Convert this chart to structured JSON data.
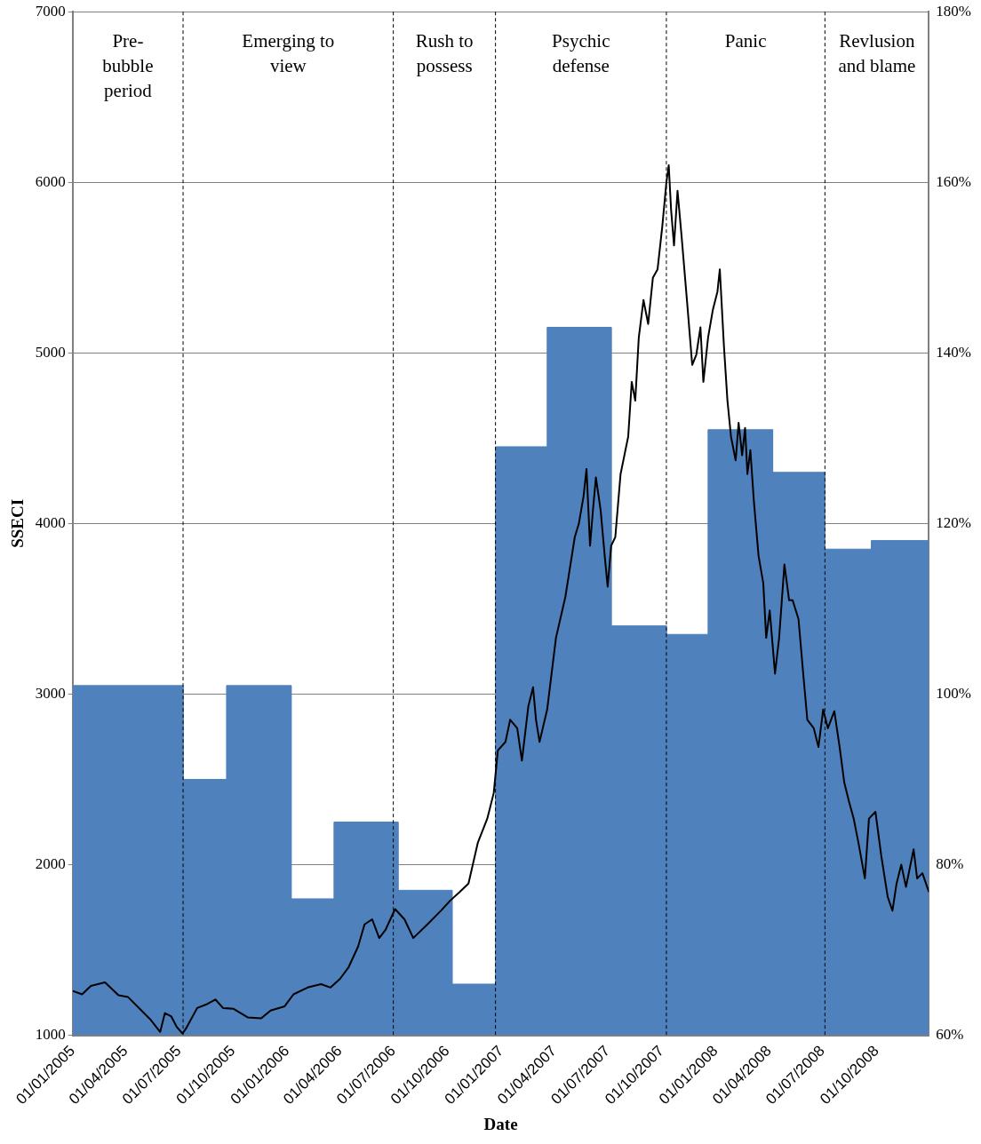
{
  "chart_data": {
    "type": "line",
    "xlabel": "Date",
    "ylabel": "SSECI",
    "xlim": [
      "2005-01-01",
      "2008-12-29"
    ],
    "xticks": [
      {
        "value": "2005-01-01",
        "label": "01/01/2005"
      },
      {
        "value": "2005-04-01",
        "label": "01/04/2005"
      },
      {
        "value": "2005-07-01",
        "label": "01/07/2005"
      },
      {
        "value": "2005-10-01",
        "label": "01/10/2005"
      },
      {
        "value": "2006-01-01",
        "label": "01/01/2006"
      },
      {
        "value": "2006-04-01",
        "label": "01/04/2006"
      },
      {
        "value": "2006-07-01",
        "label": "01/07/2006"
      },
      {
        "value": "2006-10-01",
        "label": "01/10/2006"
      },
      {
        "value": "2007-01-01",
        "label": "01/01/2007"
      },
      {
        "value": "2007-04-01",
        "label": "01/04/2007"
      },
      {
        "value": "2007-07-01",
        "label": "01/07/2007"
      },
      {
        "value": "2007-10-01",
        "label": "01/10/2007"
      },
      {
        "value": "2008-01-01",
        "label": "01/01/2008"
      },
      {
        "value": "2008-04-01",
        "label": "01/04/2008"
      },
      {
        "value": "2008-07-01",
        "label": "01/07/2008"
      },
      {
        "value": "2008-10-01",
        "label": "01/10/2008"
      }
    ],
    "ylim": [
      1000,
      7000
    ],
    "yticks": [
      1000,
      2000,
      3000,
      4000,
      5000,
      6000,
      7000
    ],
    "y2lim": [
      60,
      180
    ],
    "y2ticks": [
      {
        "value": 60,
        "label": "60%"
      },
      {
        "value": 80,
        "label": "80%"
      },
      {
        "value": 100,
        "label": "100%"
      },
      {
        "value": 120,
        "label": "120%"
      },
      {
        "value": 140,
        "label": "140%"
      },
      {
        "value": 160,
        "label": "160%"
      },
      {
        "value": 180,
        "label": "180%"
      }
    ],
    "grid": "y",
    "legend": false,
    "marker": "none",
    "ref_lines": [
      {
        "axis": "x",
        "value": "2005-07-08",
        "line_style": "dashed",
        "color": "#000000"
      },
      {
        "axis": "x",
        "value": "2006-07-01",
        "line_style": "dashed",
        "color": "#000000"
      },
      {
        "axis": "x",
        "value": "2006-12-22",
        "line_style": "dashed",
        "color": "#000000"
      },
      {
        "axis": "x",
        "value": "2007-10-09",
        "line_style": "dashed",
        "color": "#000000"
      },
      {
        "axis": "x",
        "value": "2008-07-05",
        "line_style": "dashed",
        "color": "#000000"
      }
    ],
    "annotations": [
      "Pre-\nbubble\nperiod",
      "Emerging to\nview",
      "Rush to\npossess",
      "Psychic\ndefense",
      "Panic",
      "Revlusion\nand blame"
    ],
    "series": [
      {
        "color": "#000000",
        "x": [
          "2005-01-01",
          "2005-01-17",
          "2005-02-01",
          "2005-02-25",
          "2005-03-20",
          "2005-04-05",
          "2005-04-21",
          "2005-05-14",
          "2005-05-30",
          "2005-06-07",
          "2005-06-18",
          "2005-06-27",
          "2005-07-07",
          "2005-07-13",
          "2005-08-01",
          "2005-08-16",
          "2005-09-01",
          "2005-09-14",
          "2005-10-02",
          "2005-10-26",
          "2005-11-18",
          "2005-12-04",
          "2005-12-28",
          "2006-01-12",
          "2006-02-05",
          "2006-02-28",
          "2006-03-16",
          "2006-04-01",
          "2006-04-16",
          "2006-05-02",
          "2006-05-13",
          "2006-05-26",
          "2006-06-07",
          "2006-06-18",
          "2006-07-04",
          "2006-07-20",
          "2006-08-04",
          "2006-08-28",
          "2006-09-20",
          "2006-10-06",
          "2006-10-22",
          "2006-11-06",
          "2006-11-22",
          "2006-12-08",
          "2006-12-19",
          "2006-12-26",
          "2007-01-08",
          "2007-01-16",
          "2007-01-28",
          "2007-02-05",
          "2007-02-16",
          "2007-02-24",
          "2007-03-01",
          "2007-03-07",
          "2007-03-20",
          "2007-04-04",
          "2007-04-20",
          "2007-05-06",
          "2007-05-13",
          "2007-05-21",
          "2007-05-26",
          "2007-06-01",
          "2007-06-06",
          "2007-06-11",
          "2007-06-19",
          "2007-06-26",
          "2007-07-01",
          "2007-07-07",
          "2007-07-14",
          "2007-07-23",
          "2007-08-05",
          "2007-08-11",
          "2007-08-17",
          "2007-08-23",
          "2007-08-31",
          "2007-09-08",
          "2007-09-16",
          "2007-09-24",
          "2007-10-02",
          "2007-10-09",
          "2007-10-13",
          "2007-10-17",
          "2007-10-22",
          "2007-10-28",
          "2007-11-04",
          "2007-11-13",
          "2007-11-22",
          "2007-11-29",
          "2007-12-06",
          "2007-12-11",
          "2007-12-19",
          "2007-12-27",
          "2008-01-04",
          "2008-01-08",
          "2008-01-15",
          "2008-01-21",
          "2008-01-27",
          "2008-02-04",
          "2008-02-09",
          "2008-02-15",
          "2008-02-20",
          "2008-02-24",
          "2008-02-29",
          "2008-03-06",
          "2008-03-14",
          "2008-03-22",
          "2008-03-27",
          "2008-04-02",
          "2008-04-11",
          "2008-04-18",
          "2008-04-27",
          "2008-05-05",
          "2008-05-11",
          "2008-05-21",
          "2008-05-29",
          "2008-06-05",
          "2008-06-16",
          "2008-06-24",
          "2008-07-02",
          "2008-07-10",
          "2008-07-21",
          "2008-07-30",
          "2008-08-07",
          "2008-08-15",
          "2008-08-23",
          "2008-08-31",
          "2008-09-11",
          "2008-09-18",
          "2008-09-29",
          "2008-10-09",
          "2008-10-20",
          "2008-10-28",
          "2008-11-04",
          "2008-11-12",
          "2008-11-20",
          "2008-12-03",
          "2008-12-09",
          "2008-12-18",
          "2008-12-29"
        ],
        "values": [
          1260,
          1240,
          1290,
          1310,
          1235,
          1225,
          1170,
          1090,
          1020,
          1130,
          1110,
          1050,
          1010,
          1040,
          1160,
          1180,
          1210,
          1160,
          1155,
          1105,
          1100,
          1145,
          1170,
          1240,
          1280,
          1300,
          1280,
          1330,
          1400,
          1520,
          1650,
          1680,
          1570,
          1620,
          1740,
          1680,
          1570,
          1650,
          1730,
          1790,
          1840,
          1890,
          2130,
          2270,
          2420,
          2670,
          2720,
          2850,
          2800,
          2610,
          2930,
          3040,
          2850,
          2720,
          2910,
          3330,
          3570,
          3920,
          4000,
          4160,
          4320,
          3870,
          4080,
          4270,
          4080,
          3810,
          3630,
          3870,
          3920,
          4290,
          4510,
          4830,
          4720,
          5090,
          5310,
          5170,
          5440,
          5490,
          5740,
          6000,
          6100,
          5840,
          5630,
          5950,
          5680,
          5310,
          4930,
          4990,
          5150,
          4830,
          5090,
          5250,
          5360,
          5490,
          5040,
          4720,
          4510,
          4370,
          4590,
          4400,
          4560,
          4290,
          4430,
          4130,
          3810,
          3650,
          3330,
          3490,
          3120,
          3330,
          3760,
          3550,
          3550,
          3440,
          3120,
          2850,
          2800,
          2690,
          2910,
          2800,
          2900,
          2690,
          2480,
          2370,
          2270,
          2130,
          1920,
          2270,
          2310,
          2050,
          1810,
          1730,
          1890,
          2000,
          1870,
          2090,
          1920,
          1950,
          1840
        ]
      },
      {
        "type": "area",
        "axis": "y2",
        "color": "#4f81bd",
        "x": [
          "2005-01-01",
          "2005-07-08",
          "2005-07-08",
          "2005-09-20",
          "2005-09-20",
          "2006-01-08",
          "2006-01-08",
          "2006-03-22",
          "2006-03-22",
          "2006-07-09",
          "2006-07-09",
          "2006-10-09",
          "2006-10-09",
          "2006-12-22",
          "2006-12-22",
          "2007-03-20",
          "2007-03-20",
          "2007-07-07",
          "2007-07-07",
          "2007-10-09",
          "2007-10-09",
          "2007-12-19",
          "2007-12-19",
          "2008-04-07",
          "2008-04-07",
          "2008-07-05",
          "2008-07-05",
          "2008-09-22",
          "2008-09-22",
          "2008-12-29"
        ],
        "values": [
          101,
          101,
          90,
          90,
          101,
          101,
          76,
          76,
          85,
          85,
          77,
          77,
          66,
          66,
          129,
          129,
          143,
          143,
          108,
          108,
          107,
          107,
          131,
          131,
          126,
          126,
          117,
          117,
          118,
          118
        ]
      }
    ]
  }
}
